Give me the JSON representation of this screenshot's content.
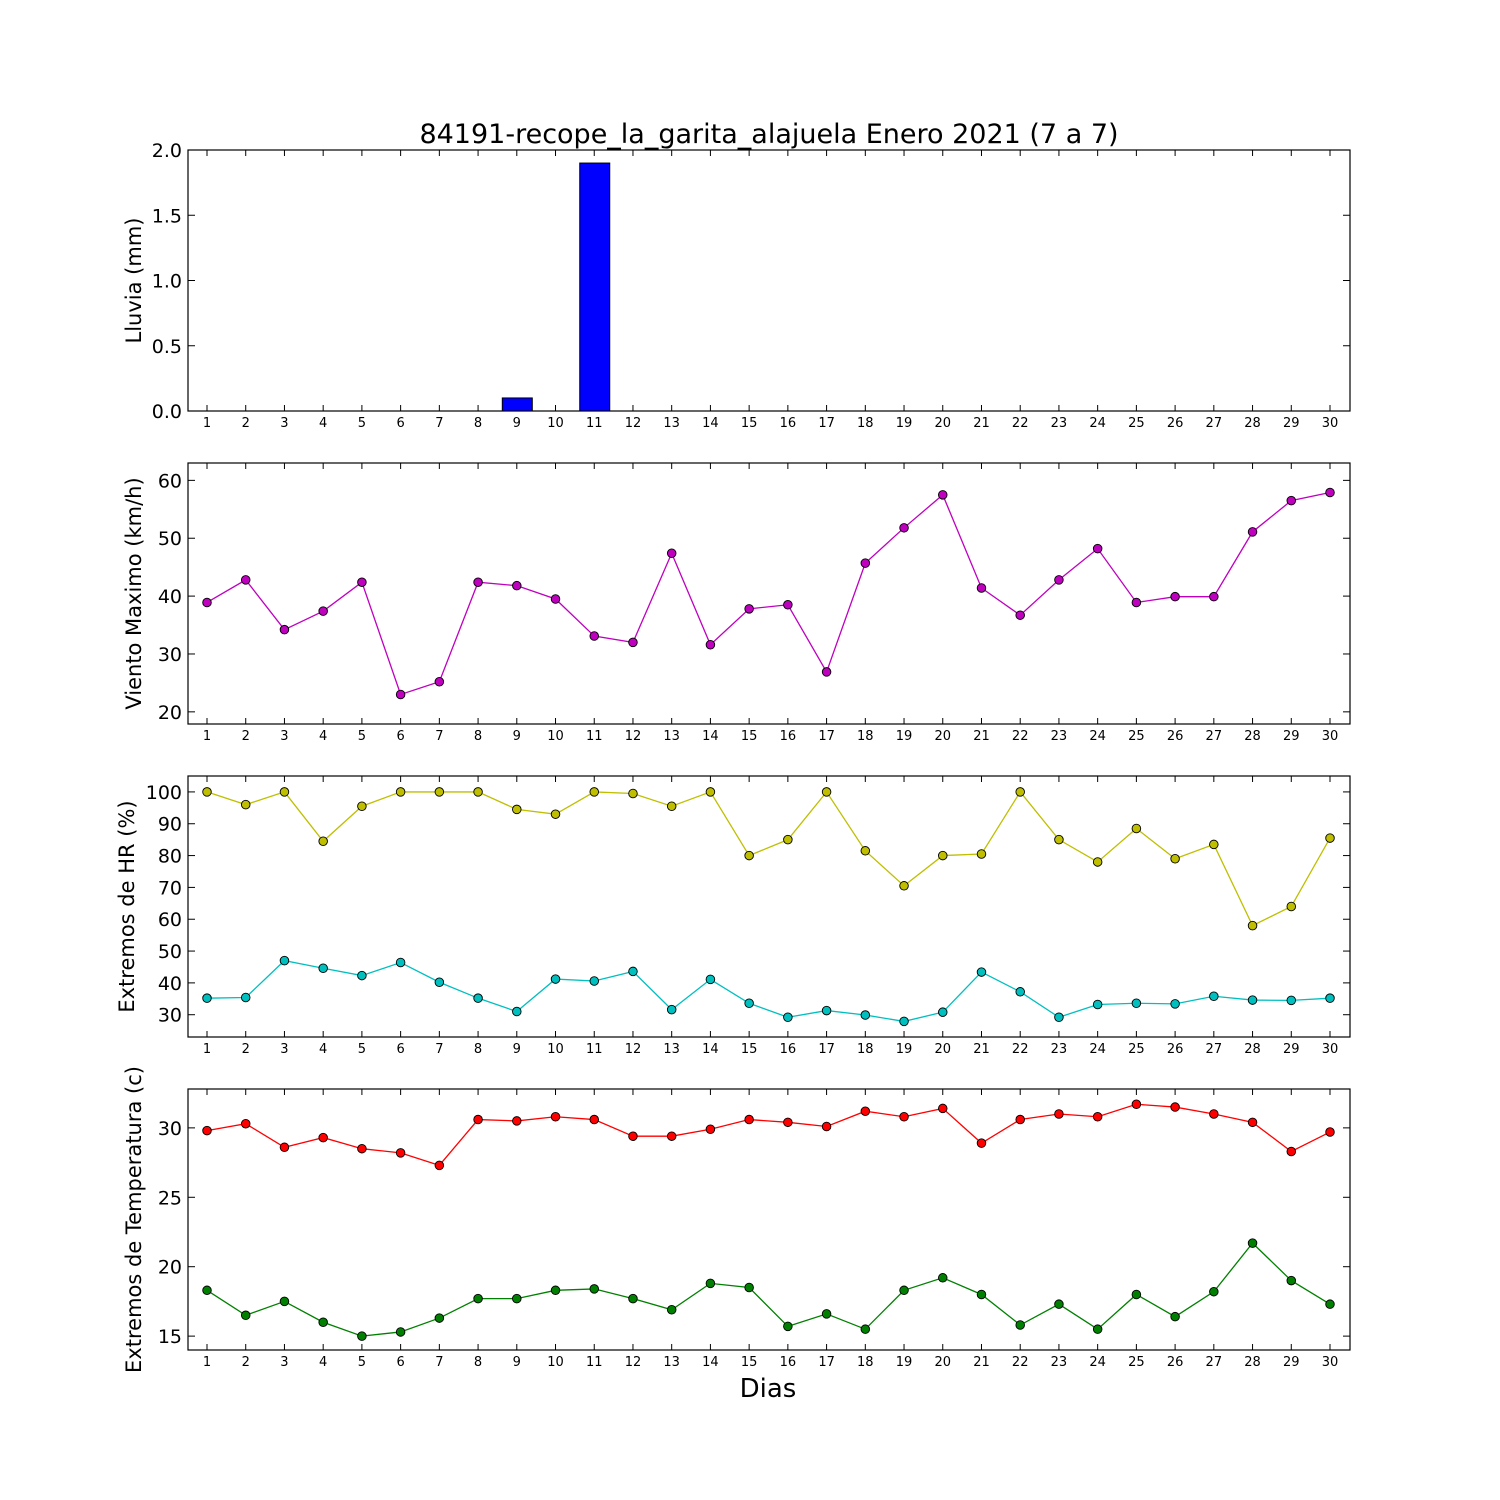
{
  "title": "84191-recope_la_garita_alajuela Enero 2021  (7 a 7)",
  "xlabel": "Dias",
  "chart_data": [
    {
      "type": "bar",
      "ylabel": "Lluvia (mm)",
      "ylim": [
        0,
        2.0
      ],
      "yticks": [
        0.0,
        0.5,
        1.0,
        1.5,
        2.0
      ],
      "ytick_labels": [
        "0.0",
        "0.5",
        "1.0",
        "1.5",
        "2.0"
      ],
      "x": [
        1,
        2,
        3,
        4,
        5,
        6,
        7,
        8,
        9,
        10,
        11,
        12,
        13,
        14,
        15,
        16,
        17,
        18,
        19,
        20,
        21,
        22,
        23,
        24,
        25,
        26,
        27,
        28,
        29,
        30
      ],
      "series": [
        {
          "color": "#0000ff",
          "values": [
            0,
            0,
            0,
            0,
            0,
            0,
            0,
            0,
            0.1,
            0,
            1.9,
            0,
            0,
            0,
            0,
            0,
            0,
            0,
            0,
            0,
            0,
            0,
            0,
            0,
            0,
            0,
            0,
            0,
            0,
            0
          ]
        }
      ]
    },
    {
      "type": "line",
      "ylabel": "Viento Maximo (km/h)",
      "ylim": [
        17.9,
        63
      ],
      "yticks": [
        20,
        30,
        40,
        50,
        60
      ],
      "ytick_labels": [
        "20",
        "30",
        "40",
        "50",
        "60"
      ],
      "x": [
        1,
        2,
        3,
        4,
        5,
        6,
        7,
        8,
        9,
        10,
        11,
        12,
        13,
        14,
        15,
        16,
        17,
        18,
        19,
        20,
        21,
        22,
        23,
        24,
        25,
        26,
        27,
        28,
        29,
        30
      ],
      "series": [
        {
          "color": "#bf00bf",
          "values": [
            38.9,
            42.8,
            34.2,
            37.4,
            42.4,
            23.0,
            25.2,
            42.4,
            41.8,
            39.5,
            33.1,
            32.0,
            47.4,
            31.6,
            37.8,
            38.5,
            26.9,
            45.7,
            51.8,
            57.5,
            41.4,
            36.7,
            42.8,
            48.2,
            38.9,
            39.9,
            39.9,
            51.1,
            56.5,
            57.9
          ]
        }
      ]
    },
    {
      "type": "line",
      "ylabel": "Extremos de HR (%)",
      "ylim": [
        23,
        105
      ],
      "yticks": [
        30,
        40,
        50,
        60,
        70,
        80,
        90,
        100
      ],
      "ytick_labels": [
        "30",
        "40",
        "50",
        "60",
        "70",
        "80",
        "90",
        "100"
      ],
      "x": [
        1,
        2,
        3,
        4,
        5,
        6,
        7,
        8,
        9,
        10,
        11,
        12,
        13,
        14,
        15,
        16,
        17,
        18,
        19,
        20,
        21,
        22,
        23,
        24,
        25,
        26,
        27,
        28,
        29,
        30
      ],
      "series": [
        {
          "color": "#bfbf00",
          "values": [
            100,
            96,
            100,
            84.5,
            95.5,
            100,
            100,
            100,
            94.5,
            93,
            100,
            99.5,
            95.5,
            100,
            80,
            85,
            100,
            81.5,
            70.5,
            80,
            80.5,
            100,
            85,
            78,
            88.5,
            79,
            83.5,
            58,
            64,
            85.5
          ]
        },
        {
          "color": "#00bfbf",
          "values": [
            35.2,
            35.4,
            47,
            44.6,
            42.3,
            46.4,
            40.2,
            35.2,
            31,
            41.2,
            40.6,
            43.6,
            31.6,
            41.1,
            33.6,
            29.2,
            31.3,
            29.9,
            27.9,
            30.8,
            43.4,
            37.2,
            29.2,
            33.2,
            33.6,
            33.4,
            35.8,
            34.6,
            34.5,
            35.2
          ]
        }
      ]
    },
    {
      "type": "line",
      "ylabel": "Extremos de Temperatura (c)",
      "ylim": [
        14,
        32.8
      ],
      "yticks": [
        15,
        20,
        25,
        30
      ],
      "ytick_labels": [
        "15",
        "20",
        "25",
        "30"
      ],
      "x": [
        1,
        2,
        3,
        4,
        5,
        6,
        7,
        8,
        9,
        10,
        11,
        12,
        13,
        14,
        15,
        16,
        17,
        18,
        19,
        20,
        21,
        22,
        23,
        24,
        25,
        26,
        27,
        28,
        29,
        30
      ],
      "series": [
        {
          "color": "#ff0000",
          "values": [
            29.8,
            30.3,
            28.6,
            29.3,
            28.5,
            28.2,
            27.3,
            30.6,
            30.5,
            30.8,
            30.6,
            29.4,
            29.4,
            29.9,
            30.6,
            30.4,
            30.1,
            31.2,
            30.8,
            31.4,
            28.9,
            30.6,
            31.0,
            30.8,
            31.7,
            31.5,
            31.0,
            30.4,
            28.3,
            29.7
          ]
        },
        {
          "color": "#008000",
          "values": [
            18.3,
            16.5,
            17.5,
            16.0,
            15.0,
            15.3,
            16.3,
            17.7,
            17.7,
            18.3,
            18.4,
            17.7,
            16.9,
            18.8,
            18.5,
            15.7,
            16.6,
            15.5,
            18.3,
            19.2,
            18.0,
            15.8,
            17.3,
            15.5,
            18.0,
            16.4,
            18.2,
            21.7,
            19.0,
            17.3
          ]
        }
      ]
    }
  ]
}
